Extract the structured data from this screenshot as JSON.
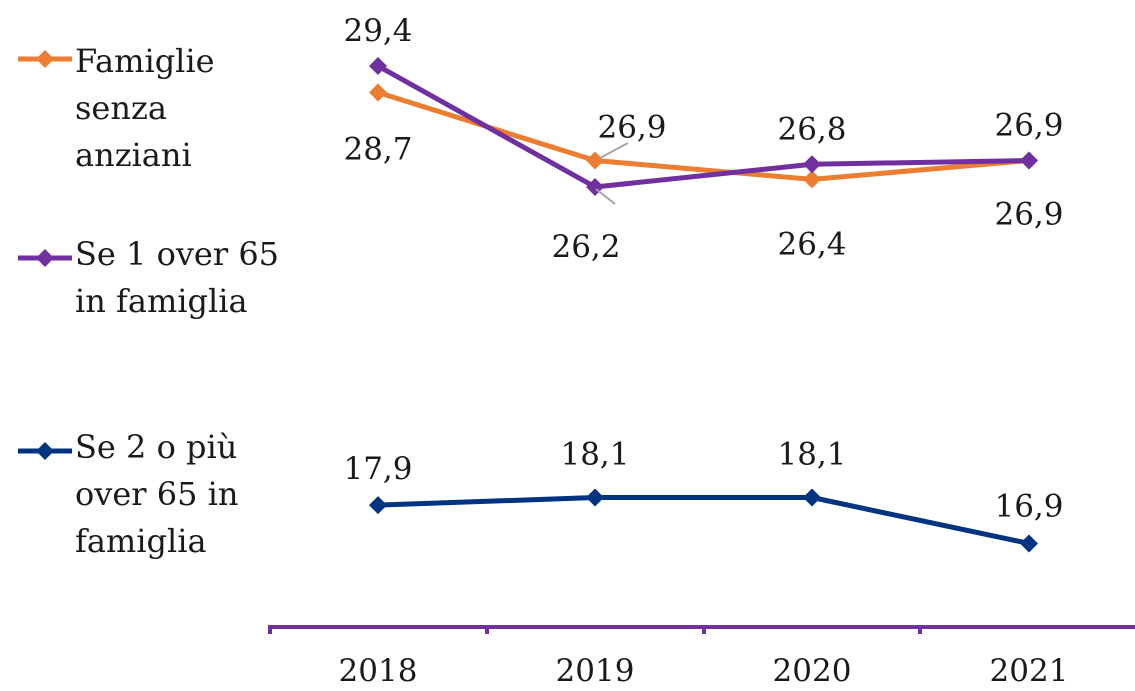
{
  "chart_data": {
    "type": "line",
    "categories": [
      "2018",
      "2019",
      "2020",
      "2021"
    ],
    "series": [
      {
        "name": "Famiglie senza anziani",
        "legend_lines": [
          "Famiglie",
          "senza",
          "anziani"
        ],
        "color": "#ed7d31",
        "values": [
          28.7,
          26.9,
          26.4,
          26.9
        ],
        "labels": [
          "28,7",
          "26,9",
          "26,4",
          "26,9"
        ]
      },
      {
        "name": "Se 1 over 65 in famiglia",
        "legend_lines": [
          "Se 1 over 65",
          "in famiglia"
        ],
        "color": "#7030a0",
        "values": [
          29.4,
          26.2,
          26.8,
          26.9
        ],
        "labels": [
          "29,4",
          "26,2",
          "26,8",
          "26,9"
        ]
      },
      {
        "name": "Se 2 o più over 65 in famiglia",
        "legend_lines": [
          "Se 2 o più",
          "over 65 in",
          "famiglia"
        ],
        "color": "#003380",
        "values": [
          17.9,
          18.1,
          18.1,
          16.9
        ],
        "labels": [
          "17,9",
          "18,1",
          "18,1",
          "16,9"
        ]
      }
    ],
    "axis_color": "#7030a0",
    "legend_position": "left",
    "grid": false
  }
}
